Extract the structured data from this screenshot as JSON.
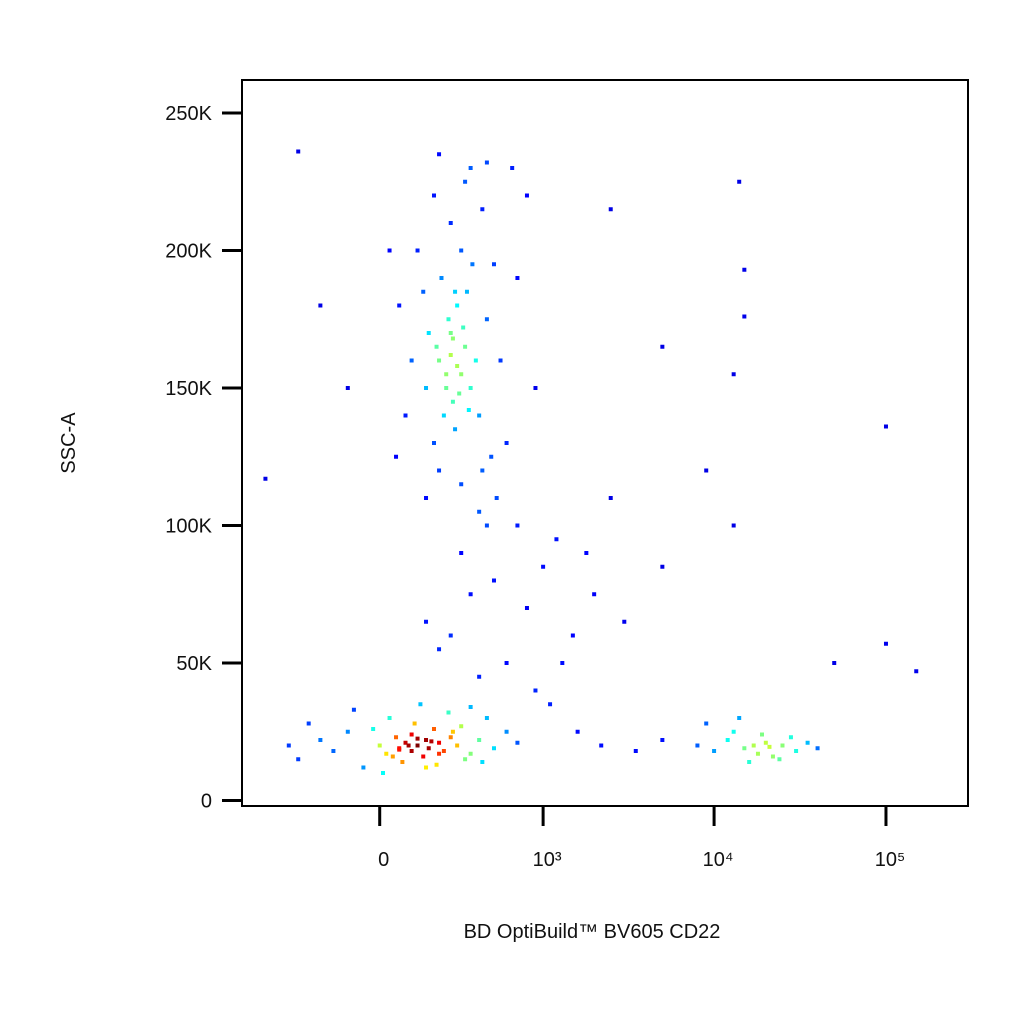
{
  "chart_data": {
    "type": "scatter",
    "x_label": "BD OptiBuild™ BV605 CD22",
    "y_label": "SSC-A",
    "x_scale": "biexponential",
    "xlim": [
      -700,
      300000
    ],
    "ylim": [
      -2000,
      262000
    ],
    "xticks": [
      0,
      {
        "value": 1000,
        "label": "10³"
      },
      {
        "value": 10000,
        "label": "10⁴"
      },
      {
        "value": 100000,
        "label": "10⁵"
      }
    ],
    "yticks": [
      0,
      {
        "value": 50000,
        "label": "50K"
      },
      {
        "value": 100000,
        "label": "100K"
      },
      {
        "value": 150000,
        "label": "150K"
      },
      {
        "value": 200000,
        "label": "200K"
      },
      {
        "value": 250000,
        "label": "250K"
      }
    ],
    "colormap": "jet",
    "x": [
      -300,
      -200,
      -150,
      -100,
      -50,
      0,
      20,
      50,
      60,
      80,
      100,
      100,
      120,
      140,
      150,
      160,
      180,
      200,
      220,
      250,
      280,
      300,
      350,
      400,
      450,
      500,
      600,
      -250,
      -350,
      30,
      70,
      110,
      190,
      240,
      320,
      420,
      -80,
      10,
      130,
      700,
      90,
      170,
      60,
      120,
      40,
      200,
      260,
      -20,
      150,
      350,
      150,
      200,
      250,
      300,
      220,
      280,
      320,
      260,
      240,
      350,
      180,
      210,
      300,
      270,
      330,
      380,
      160,
      230,
      290,
      250,
      200,
      400,
      450,
      120,
      180,
      350,
      420,
      500,
      100,
      80,
      60,
      550,
      600,
      700,
      150,
      300,
      400,
      480,
      250,
      320,
      200,
      450,
      50,
      30,
      800,
      900,
      260,
      310,
      230,
      280,
      340,
      190,
      270,
      360,
      140,
      420,
      520,
      -100,
      -200,
      650,
      300,
      500,
      800,
      1200,
      1500,
      200,
      400,
      700,
      1000,
      2000,
      2500,
      150,
      600,
      900,
      1800,
      350,
      1300,
      450,
      250,
      3000,
      1100,
      1600,
      2200,
      3500,
      5000,
      8000,
      10000,
      12000,
      15000,
      18000,
      20000,
      22000,
      25000,
      28000,
      30000,
      13000,
      16000,
      19000,
      24000,
      35000,
      40000,
      9000,
      17000,
      21000,
      14000,
      14000,
      15000,
      15000,
      13000,
      5000,
      100000,
      9000,
      13000,
      5000,
      50000,
      100000,
      150000,
      -500,
      -300,
      2500
    ],
    "y": [
      15000,
      22000,
      18000,
      25000,
      12000,
      20000,
      17000,
      23000,
      19000,
      21000,
      18000,
      24000,
      20000,
      16000,
      22000,
      19000,
      26000,
      21000,
      18000,
      23000,
      20000,
      27000,
      17000,
      22000,
      30000,
      19000,
      25000,
      28000,
      20000,
      30000,
      14000,
      28000,
      13000,
      32000,
      15000,
      14000,
      33000,
      10000,
      35000,
      21000,
      20000,
      21500,
      18500,
      22500,
      16000,
      17000,
      25000,
      26000,
      12000,
      34000,
      150000,
      160000,
      170000,
      155000,
      140000,
      180000,
      165000,
      145000,
      175000,
      150000,
      130000,
      190000,
      200000,
      135000,
      185000,
      160000,
      170000,
      155000,
      148000,
      162000,
      120000,
      140000,
      175000,
      200000,
      220000,
      230000,
      215000,
      195000,
      160000,
      140000,
      180000,
      160000,
      130000,
      190000,
      110000,
      115000,
      105000,
      125000,
      210000,
      225000,
      235000,
      232000,
      125000,
      200000,
      220000,
      150000,
      168000,
      172000,
      150000,
      158000,
      142000,
      165000,
      185000,
      195000,
      185000,
      120000,
      110000,
      150000,
      180000,
      230000,
      90000,
      80000,
      70000,
      95000,
      60000,
      55000,
      45000,
      100000,
      85000,
      75000,
      110000,
      65000,
      50000,
      40000,
      90000,
      75000,
      50000,
      100000,
      60000,
      65000,
      35000,
      25000,
      20000,
      18000,
      22000,
      20000,
      18000,
      22000,
      19000,
      17000,
      21000,
      16000,
      20000,
      23000,
      18000,
      25000,
      14000,
      24000,
      15000,
      21000,
      19000,
      28000,
      20000,
      19500,
      30000,
      225000,
      193000,
      176000,
      155000,
      165000,
      136000,
      120000,
      100000,
      85000,
      50000,
      57000,
      47000,
      117000,
      236000,
      215000
    ]
  }
}
